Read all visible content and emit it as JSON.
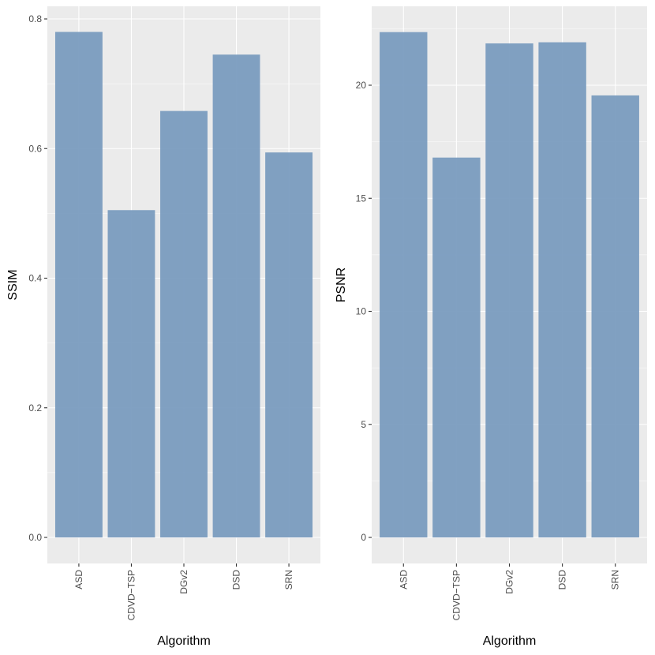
{
  "chart_data": [
    {
      "type": "bar",
      "categories": [
        "ASD",
        "CDVD−TSP",
        "DGv2",
        "DSD",
        "SRN"
      ],
      "values": [
        0.78,
        0.505,
        0.658,
        0.745,
        0.594
      ],
      "xlabel": "Algorithm",
      "ylabel": "SSIM",
      "ylim": [
        0,
        0.8
      ],
      "yticks": [
        0.0,
        0.2,
        0.4,
        0.6,
        0.8
      ],
      "ytick_labels": [
        "0.0",
        "0.2",
        "0.4",
        "0.6",
        "0.8"
      ],
      "bar_color": "#7a9cbf",
      "grid": true
    },
    {
      "type": "bar",
      "categories": [
        "ASD",
        "CDVD−TSP",
        "DGv2",
        "DSD",
        "SRN"
      ],
      "values": [
        22.35,
        16.8,
        21.85,
        21.9,
        19.55
      ],
      "xlabel": "Algorithm",
      "ylabel": "PSNR",
      "ylim": [
        0,
        20
      ],
      "yticks": [
        0,
        5,
        10,
        15,
        20
      ],
      "ytick_labels": [
        "0",
        "5",
        "10",
        "15",
        "20"
      ],
      "bar_color": "#7a9cbf",
      "grid": true
    }
  ]
}
